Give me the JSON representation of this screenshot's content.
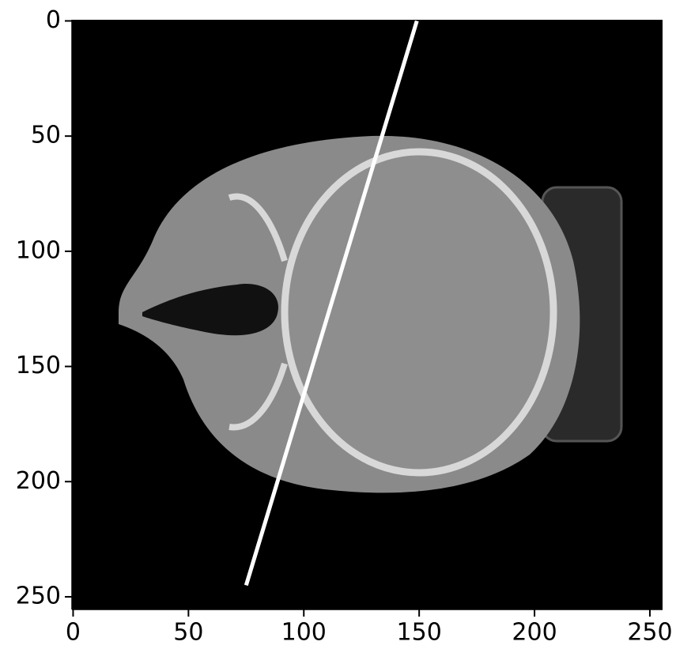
{
  "chart_data": {
    "type": "image",
    "xlim": [
      -0.5,
      255.5
    ],
    "ylim": [
      255.5,
      -0.5
    ],
    "xticks": [
      0,
      50,
      100,
      150,
      200,
      250
    ],
    "yticks": [
      0,
      50,
      100,
      150,
      200,
      250
    ],
    "series": [
      {
        "color": "#ffffff",
        "x": [
          149,
          75
        ],
        "values": [
          0,
          245
        ]
      }
    ]
  }
}
